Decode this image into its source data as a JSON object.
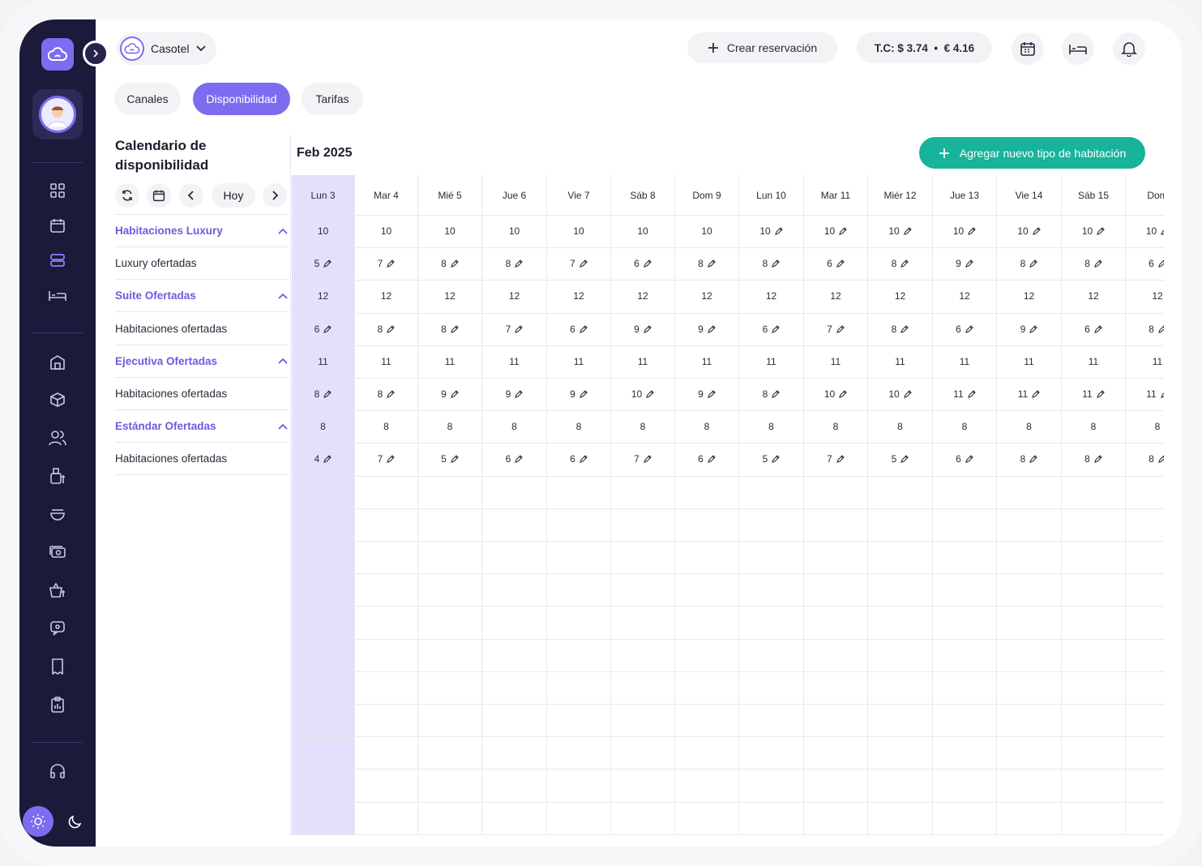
{
  "header": {
    "hotel_name": "Casotel",
    "create_reservation": "Crear reservación",
    "exchange_rate": "T.C: $ 3.74  •  € 4.16"
  },
  "tabs": [
    "Canales",
    "Disponibilidad",
    "Tarifas"
  ],
  "active_tab": "Disponibilidad",
  "panel": {
    "title": "Calendario de disponibilidad",
    "today_label": "Hoy"
  },
  "calendar": {
    "month": "Feb 2025",
    "add_room_type": "Agregar nuevo tipo de habitación",
    "days": [
      "Lun 3",
      "Mar 4",
      "Mié 5",
      "Jue 6",
      "Vie 7",
      "Sáb 8",
      "Dom 9",
      "Lun 10",
      "Mar 11",
      "Miér 12",
      "Jue 13",
      "Vie 14",
      "Sáb 15",
      "Dom"
    ],
    "rows": [
      {
        "label": "Habitaciones Luxury",
        "type": "group",
        "values": [
          "10",
          "10",
          "10",
          "10",
          "10",
          "10",
          "10",
          "10",
          "10",
          "10",
          "10",
          "10",
          "10",
          "10"
        ],
        "editable_from": 7
      },
      {
        "label": "Luxury ofertadas",
        "type": "sub",
        "values": [
          "5",
          "7",
          "8",
          "8",
          "7",
          "6",
          "8",
          "8",
          "6",
          "8",
          "9",
          "8",
          "8",
          "6"
        ],
        "editable_from": 0
      },
      {
        "label": "Suite Ofertadas",
        "type": "group",
        "values": [
          "12",
          "12",
          "12",
          "12",
          "12",
          "12",
          "12",
          "12",
          "12",
          "12",
          "12",
          "12",
          "12",
          "12"
        ],
        "editable_from": 99
      },
      {
        "label": "Habitaciones ofertadas",
        "type": "sub",
        "values": [
          "6",
          "8",
          "8",
          "7",
          "6",
          "9",
          "9",
          "6",
          "7",
          "8",
          "6",
          "9",
          "6",
          "8"
        ],
        "editable_from": 0
      },
      {
        "label": "Ejecutiva Ofertadas",
        "type": "group",
        "values": [
          "11",
          "11",
          "11",
          "11",
          "11",
          "11",
          "11",
          "11",
          "11",
          "11",
          "11",
          "11",
          "11",
          "11"
        ],
        "editable_from": 99
      },
      {
        "label": "Habitaciones ofertadas",
        "type": "sub",
        "values": [
          "8",
          "8",
          "9",
          "9",
          "9",
          "10",
          "9",
          "8",
          "10",
          "10",
          "11",
          "11",
          "11",
          "11"
        ],
        "editable_from": 0
      },
      {
        "label": "Estándar Ofertadas",
        "type": "group",
        "values": [
          "8",
          "8",
          "8",
          "8",
          "8",
          "8",
          "8",
          "8",
          "8",
          "8",
          "8",
          "8",
          "8",
          "8"
        ],
        "editable_from": 99
      },
      {
        "label": "Habitaciones ofertadas",
        "type": "sub",
        "values": [
          "4",
          "7",
          "5",
          "6",
          "6",
          "7",
          "6",
          "5",
          "7",
          "5",
          "6",
          "8",
          "8",
          "8"
        ],
        "editable_from": 0
      }
    ]
  },
  "colors": {
    "sidebar": "#1b1a3a",
    "accent": "#7c6cf0",
    "success": "#17b39a",
    "today_column": "#e3e0fb"
  },
  "icons": [
    "cloud-logo-icon",
    "grid-icon",
    "calendar-icon",
    "stack-icon",
    "bed-icon",
    "building-icon",
    "box-icon",
    "users-icon",
    "cash-register-icon",
    "bowl-icon",
    "money-icon",
    "basket-money-icon",
    "chat-icon",
    "document-icon",
    "clipboard-icon",
    "headset-icon",
    "sun-icon",
    "moon-icon",
    "bell-icon",
    "refresh-icon"
  ]
}
